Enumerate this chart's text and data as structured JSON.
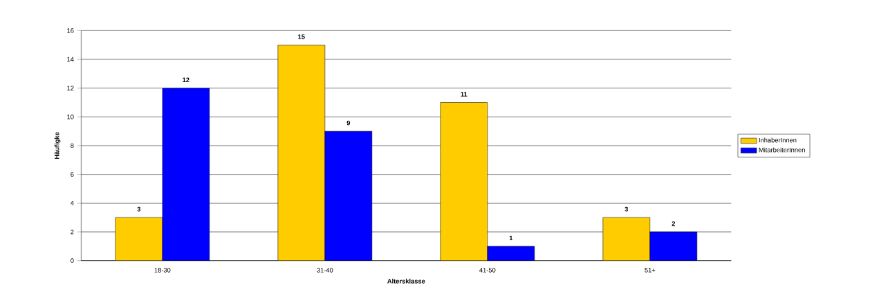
{
  "chart_data": {
    "type": "bar",
    "xlabel": "Altersklasse",
    "ylabel": "Häufigke",
    "categories": [
      "18-30",
      "31-40",
      "41-50",
      "51+"
    ],
    "series": [
      {
        "name": "InhaberInnen",
        "color": "#ffcc00",
        "values": [
          3,
          15,
          11,
          3
        ]
      },
      {
        "name": "MitarbeiterInnen",
        "color": "#0000ff",
        "values": [
          12,
          9,
          1,
          2
        ]
      }
    ],
    "ylim": [
      0,
      16
    ],
    "yticks": [
      0,
      2,
      4,
      6,
      8,
      10,
      12,
      14,
      16
    ],
    "grid": "y",
    "legend": "right",
    "data_labels": true
  }
}
